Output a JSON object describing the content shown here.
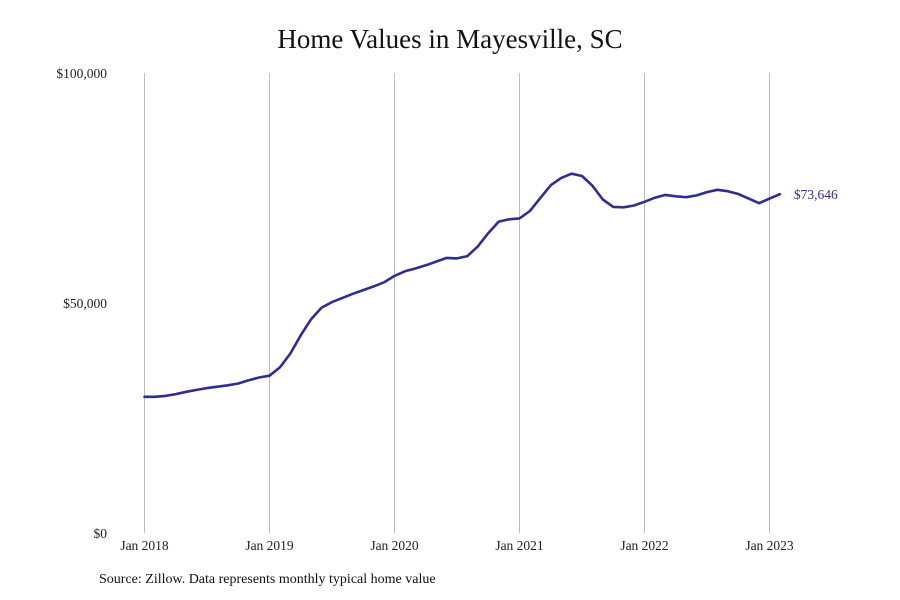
{
  "title": "Home Values in Mayesville, SC",
  "source": "Source: Zillow. Data represents monthly typical home value",
  "colors": {
    "line": "#2e2e8f",
    "grid": "#bdbdbd"
  },
  "chart_data": {
    "type": "line",
    "title": "Home Values in Mayesville, SC",
    "xlabel": "",
    "ylabel": "",
    "ylim": [
      0,
      100000
    ],
    "y_ticks": [
      {
        "value": 0,
        "label": "$0"
      },
      {
        "value": 50000,
        "label": "$50,000"
      },
      {
        "value": 100000,
        "label": "$100,000"
      }
    ],
    "x_ticks": [
      {
        "value": "2018-01",
        "label": "Jan 2018"
      },
      {
        "value": "2019-01",
        "label": "Jan 2019"
      },
      {
        "value": "2020-01",
        "label": "Jan 2020"
      },
      {
        "value": "2021-01",
        "label": "Jan 2021"
      },
      {
        "value": "2022-01",
        "label": "Jan 2022"
      },
      {
        "value": "2023-01",
        "label": "Jan 2023"
      }
    ],
    "grid": "vertical",
    "end_label": "$73,646",
    "series": [
      {
        "x": [
          "2018-01",
          "2018-02",
          "2018-03",
          "2018-04",
          "2018-05",
          "2018-06",
          "2018-07",
          "2018-08",
          "2018-09",
          "2018-10",
          "2018-11",
          "2018-12",
          "2019-01",
          "2019-02",
          "2019-03",
          "2019-04",
          "2019-05",
          "2019-06",
          "2019-07",
          "2019-08",
          "2019-09",
          "2019-10",
          "2019-11",
          "2019-12",
          "2020-01",
          "2020-02",
          "2020-03",
          "2020-04",
          "2020-05",
          "2020-06",
          "2020-07",
          "2020-08",
          "2020-09",
          "2020-10",
          "2020-11",
          "2020-12",
          "2021-01",
          "2021-02",
          "2021-03",
          "2021-04",
          "2021-05",
          "2021-06",
          "2021-07",
          "2021-08",
          "2021-09",
          "2021-10",
          "2021-11",
          "2021-12",
          "2022-01",
          "2022-02",
          "2022-03",
          "2022-04",
          "2022-05",
          "2022-06",
          "2022-07",
          "2022-08",
          "2022-09",
          "2022-10",
          "2022-11",
          "2022-12",
          "2023-01",
          "2023-02"
        ],
        "values": [
          29600,
          29600,
          29800,
          30200,
          30700,
          31100,
          31500,
          31800,
          32100,
          32500,
          33200,
          33800,
          34200,
          36000,
          39000,
          43000,
          46500,
          49000,
          50200,
          51100,
          52000,
          52800,
          53600,
          54500,
          55900,
          56900,
          57500,
          58200,
          59000,
          59800,
          59700,
          60200,
          62300,
          65200,
          67700,
          68200,
          68400,
          70000,
          72800,
          75600,
          77200,
          78100,
          77600,
          75500,
          72500,
          70900,
          70800,
          71200,
          72000,
          72900,
          73500,
          73200,
          73000,
          73400,
          74100,
          74600,
          74300,
          73700,
          72700,
          71700,
          72700,
          73646
        ]
      }
    ]
  }
}
